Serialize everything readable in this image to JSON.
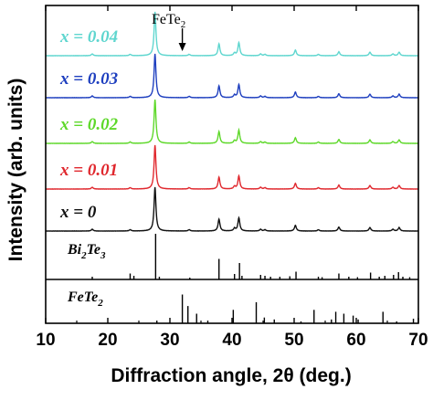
{
  "chart_data": {
    "type": "line",
    "xlabel": "Diffraction angle, 2θ (deg.)",
    "ylabel": "Intensity (arb. units)",
    "xlim": [
      10,
      70
    ],
    "x_ticks": [
      "10",
      "20",
      "30",
      "40",
      "50",
      "60",
      "70"
    ],
    "grid": false,
    "annotation": {
      "text": "FeTe",
      "sub": "2",
      "x": 32
    },
    "series": [
      {
        "label_pre": "x",
        "label_post": " = 0.04",
        "color": "#5fd6cf"
      },
      {
        "label_pre": "x",
        "label_post": " = 0.03",
        "color": "#1e3fbf"
      },
      {
        "label_pre": "x",
        "label_post": " = 0.02",
        "color": "#5ed82a"
      },
      {
        "label_pre": "x",
        "label_post": " = 0.01",
        "color": "#e0282e"
      },
      {
        "label_pre": "x",
        "label_post": " = 0",
        "color": "#111111"
      }
    ],
    "peaks": [
      {
        "x": 17.5,
        "h": 0.04
      },
      {
        "x": 23.6,
        "h": 0.03
      },
      {
        "x": 27.6,
        "h": 1.0
      },
      {
        "x": 33.1,
        "h": 0.03
      },
      {
        "x": 37.9,
        "h": 0.27
      },
      {
        "x": 40.4,
        "h": 0.06
      },
      {
        "x": 41.1,
        "h": 0.3
      },
      {
        "x": 44.6,
        "h": 0.04
      },
      {
        "x": 45.3,
        "h": 0.03
      },
      {
        "x": 50.2,
        "h": 0.13
      },
      {
        "x": 53.9,
        "h": 0.03
      },
      {
        "x": 57.2,
        "h": 0.09
      },
      {
        "x": 62.2,
        "h": 0.08
      },
      {
        "x": 65.9,
        "h": 0.04
      },
      {
        "x": 66.9,
        "h": 0.08
      }
    ],
    "references": [
      {
        "name": "Bi",
        "sub1": "2",
        "mid": "Te",
        "sub2": "3",
        "lines": [
          {
            "x": 17.5,
            "h": 0.06
          },
          {
            "x": 23.6,
            "h": 0.13
          },
          {
            "x": 24.2,
            "h": 0.08
          },
          {
            "x": 27.7,
            "h": 1.0
          },
          {
            "x": 28.3,
            "h": 0.06
          },
          {
            "x": 33.2,
            "h": 0.04
          },
          {
            "x": 37.9,
            "h": 0.45
          },
          {
            "x": 40.4,
            "h": 0.12
          },
          {
            "x": 41.2,
            "h": 0.36
          },
          {
            "x": 41.6,
            "h": 0.08
          },
          {
            "x": 44.6,
            "h": 0.1
          },
          {
            "x": 45.3,
            "h": 0.08
          },
          {
            "x": 46.2,
            "h": 0.06
          },
          {
            "x": 47.7,
            "h": 0.06
          },
          {
            "x": 49.3,
            "h": 0.07
          },
          {
            "x": 50.3,
            "h": 0.17
          },
          {
            "x": 53.9,
            "h": 0.06
          },
          {
            "x": 54.5,
            "h": 0.05
          },
          {
            "x": 57.2,
            "h": 0.13
          },
          {
            "x": 58.8,
            "h": 0.06
          },
          {
            "x": 60.2,
            "h": 0.05
          },
          {
            "x": 62.3,
            "h": 0.15
          },
          {
            "x": 63.7,
            "h": 0.06
          },
          {
            "x": 64.6,
            "h": 0.08
          },
          {
            "x": 66.0,
            "h": 0.1
          },
          {
            "x": 66.8,
            "h": 0.16
          },
          {
            "x": 67.5,
            "h": 0.06
          },
          {
            "x": 68.6,
            "h": 0.05
          }
        ]
      },
      {
        "name": "FeTe",
        "sub1": "2",
        "mid": "",
        "sub2": "",
        "lines": [
          {
            "x": 27.9,
            "h": 0.07
          },
          {
            "x": 32.0,
            "h": 0.75
          },
          {
            "x": 32.9,
            "h": 0.45
          },
          {
            "x": 34.3,
            "h": 0.25
          },
          {
            "x": 36.1,
            "h": 0.07
          },
          {
            "x": 40.2,
            "h": 0.35
          },
          {
            "x": 43.9,
            "h": 0.55
          },
          {
            "x": 45.2,
            "h": 0.15
          },
          {
            "x": 46.8,
            "h": 0.1
          },
          {
            "x": 51.1,
            "h": 0.05
          },
          {
            "x": 53.2,
            "h": 0.35
          },
          {
            "x": 56.0,
            "h": 0.1
          },
          {
            "x": 56.7,
            "h": 0.3
          },
          {
            "x": 58.0,
            "h": 0.25
          },
          {
            "x": 59.5,
            "h": 0.2
          },
          {
            "x": 60.3,
            "h": 0.1
          },
          {
            "x": 64.3,
            "h": 0.3
          },
          {
            "x": 66.5,
            "h": 0.05
          },
          {
            "x": 69.2,
            "h": 0.12
          }
        ]
      }
    ]
  }
}
